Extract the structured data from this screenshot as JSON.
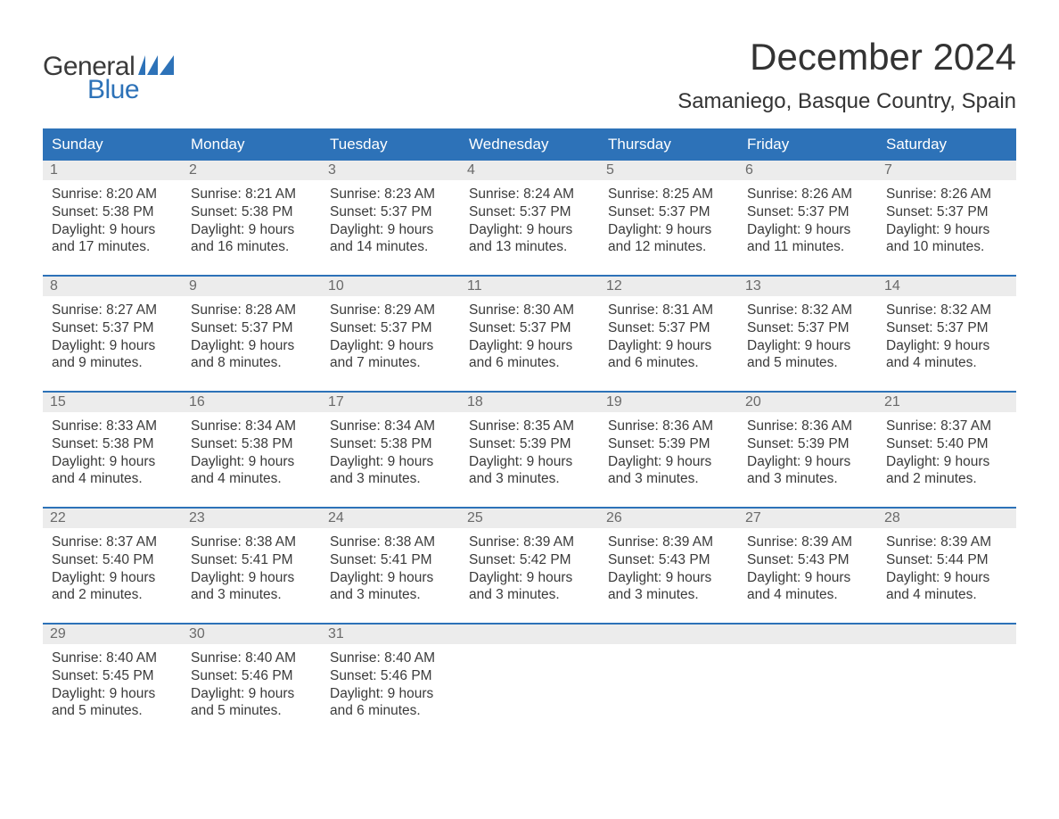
{
  "logo": {
    "text_general": "General",
    "text_blue": "Blue",
    "accent_color": "#2d72b8"
  },
  "header": {
    "month_title": "December 2024",
    "location": "Samaniego, Basque Country, Spain"
  },
  "calendar": {
    "type": "table",
    "accent_color": "#2d72b8",
    "header_bg": "#2d72b8",
    "header_text_color": "#ffffff",
    "daynum_bg": "#ececec",
    "daynum_color": "#6a6a6a",
    "body_text_color": "#3a3a3a",
    "background_color": "#ffffff",
    "border_color": "#2d72b8",
    "font_family": "Arial",
    "header_fontsize": 17,
    "body_fontsize": 15.5,
    "columns": [
      "Sunday",
      "Monday",
      "Tuesday",
      "Wednesday",
      "Thursday",
      "Friday",
      "Saturday"
    ],
    "weeks": [
      [
        {
          "day": "1",
          "sunrise": "Sunrise: 8:20 AM",
          "sunset": "Sunset: 5:38 PM",
          "dl1": "Daylight: 9 hours",
          "dl2": "and 17 minutes."
        },
        {
          "day": "2",
          "sunrise": "Sunrise: 8:21 AM",
          "sunset": "Sunset: 5:38 PM",
          "dl1": "Daylight: 9 hours",
          "dl2": "and 16 minutes."
        },
        {
          "day": "3",
          "sunrise": "Sunrise: 8:23 AM",
          "sunset": "Sunset: 5:37 PM",
          "dl1": "Daylight: 9 hours",
          "dl2": "and 14 minutes."
        },
        {
          "day": "4",
          "sunrise": "Sunrise: 8:24 AM",
          "sunset": "Sunset: 5:37 PM",
          "dl1": "Daylight: 9 hours",
          "dl2": "and 13 minutes."
        },
        {
          "day": "5",
          "sunrise": "Sunrise: 8:25 AM",
          "sunset": "Sunset: 5:37 PM",
          "dl1": "Daylight: 9 hours",
          "dl2": "and 12 minutes."
        },
        {
          "day": "6",
          "sunrise": "Sunrise: 8:26 AM",
          "sunset": "Sunset: 5:37 PM",
          "dl1": "Daylight: 9 hours",
          "dl2": "and 11 minutes."
        },
        {
          "day": "7",
          "sunrise": "Sunrise: 8:26 AM",
          "sunset": "Sunset: 5:37 PM",
          "dl1": "Daylight: 9 hours",
          "dl2": "and 10 minutes."
        }
      ],
      [
        {
          "day": "8",
          "sunrise": "Sunrise: 8:27 AM",
          "sunset": "Sunset: 5:37 PM",
          "dl1": "Daylight: 9 hours",
          "dl2": "and 9 minutes."
        },
        {
          "day": "9",
          "sunrise": "Sunrise: 8:28 AM",
          "sunset": "Sunset: 5:37 PM",
          "dl1": "Daylight: 9 hours",
          "dl2": "and 8 minutes."
        },
        {
          "day": "10",
          "sunrise": "Sunrise: 8:29 AM",
          "sunset": "Sunset: 5:37 PM",
          "dl1": "Daylight: 9 hours",
          "dl2": "and 7 minutes."
        },
        {
          "day": "11",
          "sunrise": "Sunrise: 8:30 AM",
          "sunset": "Sunset: 5:37 PM",
          "dl1": "Daylight: 9 hours",
          "dl2": "and 6 minutes."
        },
        {
          "day": "12",
          "sunrise": "Sunrise: 8:31 AM",
          "sunset": "Sunset: 5:37 PM",
          "dl1": "Daylight: 9 hours",
          "dl2": "and 6 minutes."
        },
        {
          "day": "13",
          "sunrise": "Sunrise: 8:32 AM",
          "sunset": "Sunset: 5:37 PM",
          "dl1": "Daylight: 9 hours",
          "dl2": "and 5 minutes."
        },
        {
          "day": "14",
          "sunrise": "Sunrise: 8:32 AM",
          "sunset": "Sunset: 5:37 PM",
          "dl1": "Daylight: 9 hours",
          "dl2": "and 4 minutes."
        }
      ],
      [
        {
          "day": "15",
          "sunrise": "Sunrise: 8:33 AM",
          "sunset": "Sunset: 5:38 PM",
          "dl1": "Daylight: 9 hours",
          "dl2": "and 4 minutes."
        },
        {
          "day": "16",
          "sunrise": "Sunrise: 8:34 AM",
          "sunset": "Sunset: 5:38 PM",
          "dl1": "Daylight: 9 hours",
          "dl2": "and 4 minutes."
        },
        {
          "day": "17",
          "sunrise": "Sunrise: 8:34 AM",
          "sunset": "Sunset: 5:38 PM",
          "dl1": "Daylight: 9 hours",
          "dl2": "and 3 minutes."
        },
        {
          "day": "18",
          "sunrise": "Sunrise: 8:35 AM",
          "sunset": "Sunset: 5:39 PM",
          "dl1": "Daylight: 9 hours",
          "dl2": "and 3 minutes."
        },
        {
          "day": "19",
          "sunrise": "Sunrise: 8:36 AM",
          "sunset": "Sunset: 5:39 PM",
          "dl1": "Daylight: 9 hours",
          "dl2": "and 3 minutes."
        },
        {
          "day": "20",
          "sunrise": "Sunrise: 8:36 AM",
          "sunset": "Sunset: 5:39 PM",
          "dl1": "Daylight: 9 hours",
          "dl2": "and 3 minutes."
        },
        {
          "day": "21",
          "sunrise": "Sunrise: 8:37 AM",
          "sunset": "Sunset: 5:40 PM",
          "dl1": "Daylight: 9 hours",
          "dl2": "and 2 minutes."
        }
      ],
      [
        {
          "day": "22",
          "sunrise": "Sunrise: 8:37 AM",
          "sunset": "Sunset: 5:40 PM",
          "dl1": "Daylight: 9 hours",
          "dl2": "and 2 minutes."
        },
        {
          "day": "23",
          "sunrise": "Sunrise: 8:38 AM",
          "sunset": "Sunset: 5:41 PM",
          "dl1": "Daylight: 9 hours",
          "dl2": "and 3 minutes."
        },
        {
          "day": "24",
          "sunrise": "Sunrise: 8:38 AM",
          "sunset": "Sunset: 5:41 PM",
          "dl1": "Daylight: 9 hours",
          "dl2": "and 3 minutes."
        },
        {
          "day": "25",
          "sunrise": "Sunrise: 8:39 AM",
          "sunset": "Sunset: 5:42 PM",
          "dl1": "Daylight: 9 hours",
          "dl2": "and 3 minutes."
        },
        {
          "day": "26",
          "sunrise": "Sunrise: 8:39 AM",
          "sunset": "Sunset: 5:43 PM",
          "dl1": "Daylight: 9 hours",
          "dl2": "and 3 minutes."
        },
        {
          "day": "27",
          "sunrise": "Sunrise: 8:39 AM",
          "sunset": "Sunset: 5:43 PM",
          "dl1": "Daylight: 9 hours",
          "dl2": "and 4 minutes."
        },
        {
          "day": "28",
          "sunrise": "Sunrise: 8:39 AM",
          "sunset": "Sunset: 5:44 PM",
          "dl1": "Daylight: 9 hours",
          "dl2": "and 4 minutes."
        }
      ],
      [
        {
          "day": "29",
          "sunrise": "Sunrise: 8:40 AM",
          "sunset": "Sunset: 5:45 PM",
          "dl1": "Daylight: 9 hours",
          "dl2": "and 5 minutes."
        },
        {
          "day": "30",
          "sunrise": "Sunrise: 8:40 AM",
          "sunset": "Sunset: 5:46 PM",
          "dl1": "Daylight: 9 hours",
          "dl2": "and 5 minutes."
        },
        {
          "day": "31",
          "sunrise": "Sunrise: 8:40 AM",
          "sunset": "Sunset: 5:46 PM",
          "dl1": "Daylight: 9 hours",
          "dl2": "and 6 minutes."
        },
        {},
        {},
        {},
        {}
      ]
    ]
  }
}
